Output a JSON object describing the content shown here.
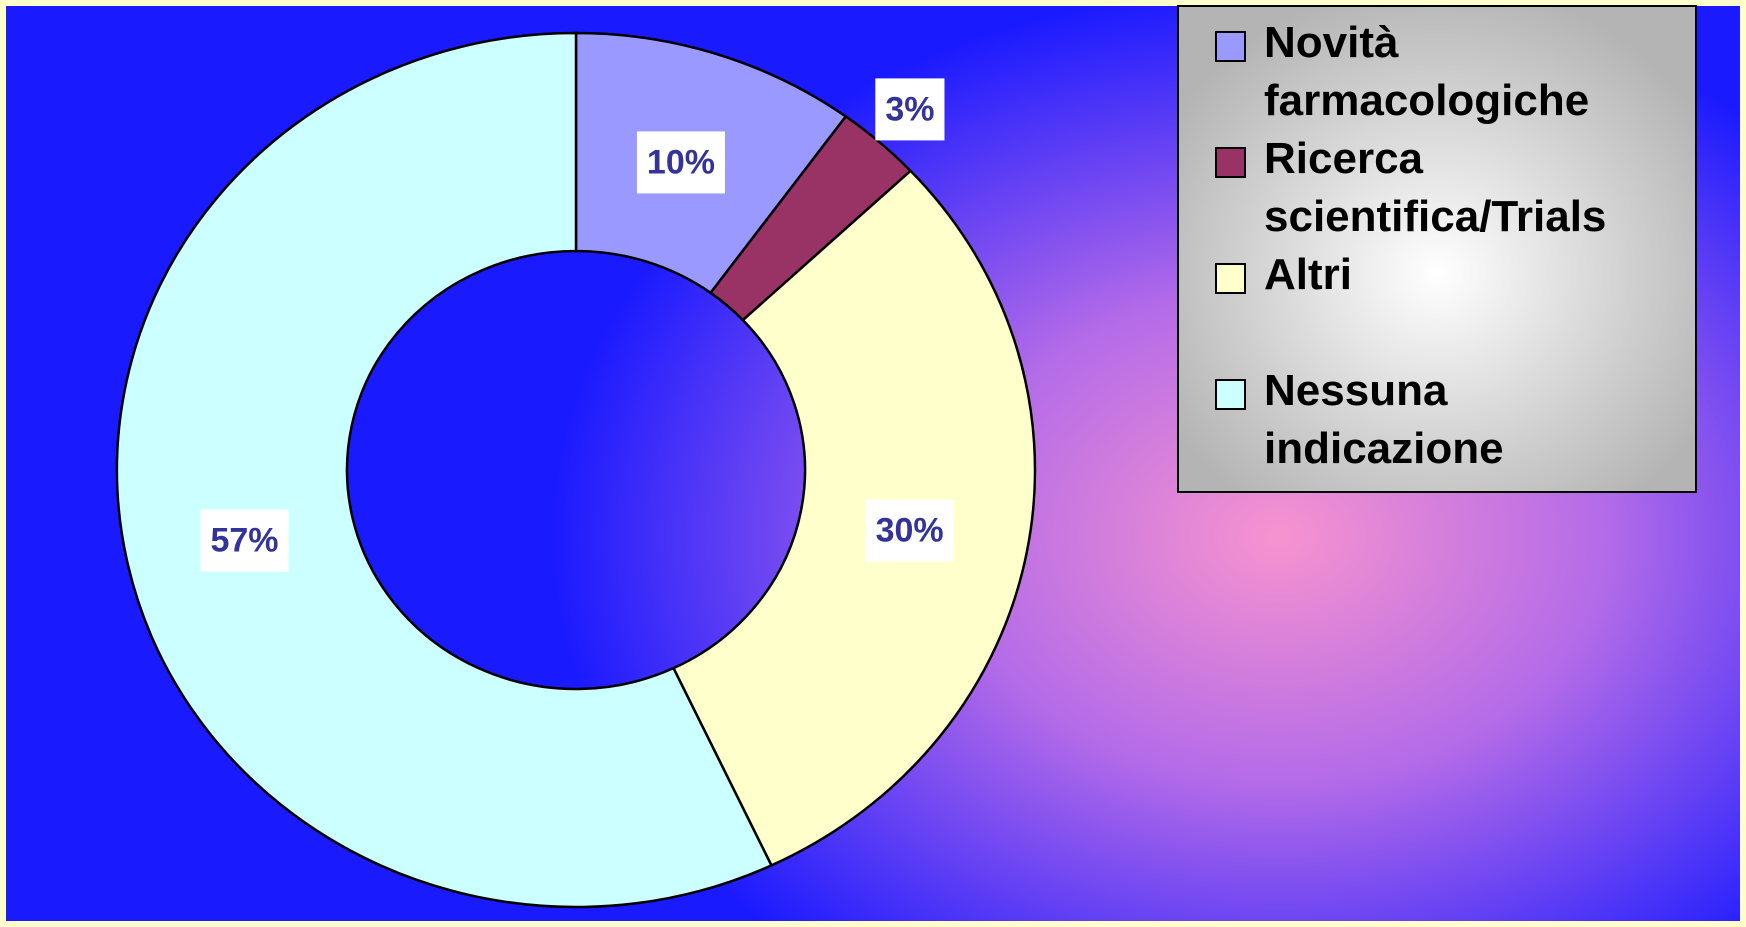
{
  "chart_data": {
    "type": "donut",
    "categories": [
      "Novità farmacologiche",
      "Ricerca scientifica/Trials",
      "Altri",
      "Nessuna indicazione"
    ],
    "values": [
      10,
      3,
      30,
      57
    ],
    "value_labels": [
      "10%",
      "3%",
      "30%",
      "57%"
    ],
    "colors": [
      "#9999ff",
      "#993366",
      "#ffffcc",
      "#ccffff"
    ],
    "legend": "top-right"
  }
}
